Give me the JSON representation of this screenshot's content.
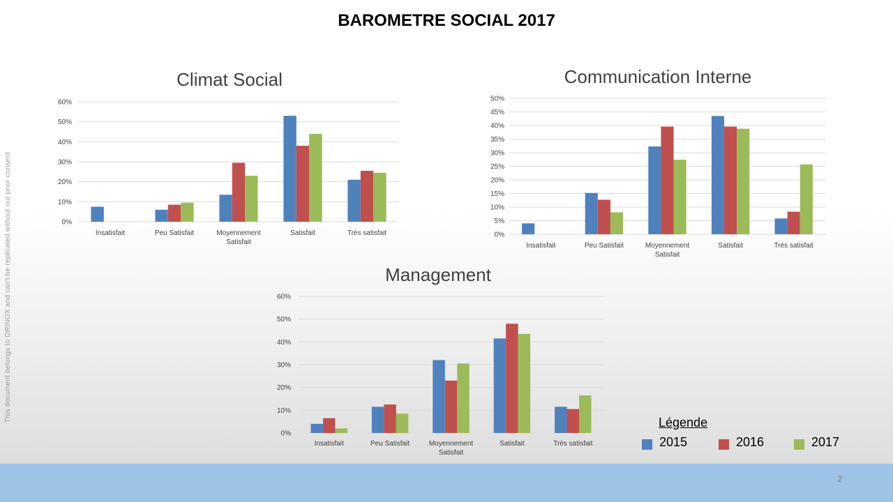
{
  "page": {
    "title": "BAROMETRE SOCIAL 2017",
    "watermark": "This document belongs to ORINOX and can't be replicated without our prior consent",
    "page_number": "2"
  },
  "legend": {
    "title": "Légende",
    "items": [
      {
        "label": "2015",
        "color": "#4f81bd"
      },
      {
        "label": "2016",
        "color": "#c0504d"
      },
      {
        "label": "2017",
        "color": "#9bbb59"
      }
    ]
  },
  "chart_data": [
    {
      "type": "bar",
      "title": "Climat Social",
      "categories": [
        "Insatisfait",
        "Peu Satisfait",
        "Moyennement Satisfait",
        "Satisfait",
        "Très satisfait"
      ],
      "series": [
        {
          "name": "2015",
          "values": [
            7.5,
            6,
            13.5,
            53,
            21
          ]
        },
        {
          "name": "2016",
          "values": [
            0,
            8.5,
            29.5,
            38,
            25.5
          ]
        },
        {
          "name": "2017",
          "values": [
            0,
            9.5,
            23,
            44,
            24.5
          ]
        }
      ],
      "ylim": [
        0,
        60
      ],
      "yticks": [
        0,
        10,
        20,
        30,
        40,
        50,
        60
      ],
      "ytick_labels": [
        "0%",
        "10%",
        "20%",
        "30%",
        "40%",
        "50%",
        "60%"
      ],
      "grid": true
    },
    {
      "type": "bar",
      "title": "Communication Interne",
      "categories": [
        "Insatisfait",
        "Peu Satisfait",
        "Moyennement Satisfait",
        "Satisfait",
        "Très satisfait"
      ],
      "series": [
        {
          "name": "2015",
          "values": [
            4,
            15.2,
            32.3,
            43.5,
            5.8
          ]
        },
        {
          "name": "2016",
          "values": [
            0,
            12.7,
            39.6,
            39.6,
            8.3
          ]
        },
        {
          "name": "2017",
          "values": [
            0,
            8.1,
            27.4,
            38.8,
            25.7
          ]
        }
      ],
      "ylim": [
        0,
        50
      ],
      "yticks": [
        0,
        5,
        10,
        15,
        20,
        25,
        30,
        35,
        40,
        45,
        50
      ],
      "ytick_labels": [
        "0%",
        "5%",
        "10%",
        "15%",
        "20%",
        "25%",
        "30%",
        "35%",
        "40%",
        "45%",
        "50%"
      ],
      "grid": true
    },
    {
      "type": "bar",
      "title": "Management",
      "categories": [
        "Insatisfait",
        "Peu Satisfait",
        "Moyennement Satisfait",
        "Satisfait",
        "Très satisfait"
      ],
      "series": [
        {
          "name": "2015",
          "values": [
            4,
            11.5,
            32,
            41.5,
            11.5
          ]
        },
        {
          "name": "2016",
          "values": [
            6.5,
            12.5,
            23,
            48,
            10.5
          ]
        },
        {
          "name": "2017",
          "values": [
            2,
            8.5,
            30.5,
            43.5,
            16.5
          ]
        }
      ],
      "ylim": [
        0,
        60
      ],
      "yticks": [
        0,
        10,
        20,
        30,
        40,
        50,
        60
      ],
      "ytick_labels": [
        "0%",
        "10%",
        "20%",
        "30%",
        "40%",
        "50%",
        "60%"
      ],
      "grid": true
    }
  ]
}
